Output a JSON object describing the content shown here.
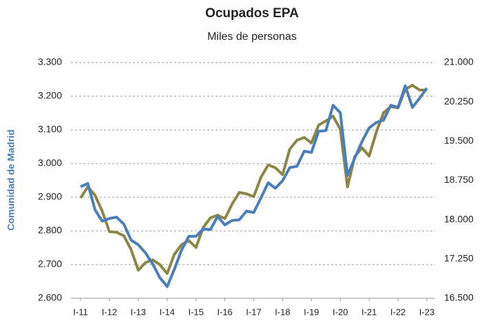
{
  "chart_data": {
    "type": "line",
    "title": "Ocupados EPA",
    "subtitle": "Miles de personas",
    "y_label": "Comunidad de Madrid",
    "categories": [
      "I-11",
      null,
      null,
      null,
      "I-12",
      null,
      null,
      null,
      "I-13",
      null,
      null,
      null,
      "I-14",
      null,
      null,
      null,
      "I-15",
      null,
      null,
      null,
      "I-16",
      null,
      null,
      null,
      "I-17",
      null,
      null,
      null,
      "I-18",
      null,
      null,
      null,
      "I-19",
      null,
      null,
      null,
      "I-20",
      null,
      null,
      null,
      "I-21",
      null,
      null,
      null,
      "I-22",
      null,
      null,
      null,
      "I-23"
    ],
    "series": [
      {
        "color": "#4a7ebb",
        "values": [
          2931,
          2941,
          2863,
          2829,
          2837,
          2841,
          2820,
          2773,
          2759,
          2735,
          2702,
          2661,
          2635,
          2686,
          2743,
          2784,
          2784,
          2806,
          2804,
          2843,
          2818,
          2831,
          2833,
          2859,
          2855,
          2898,
          2943,
          2927,
          2949,
          2988,
          2992,
          3037,
          3033,
          3096,
          3098,
          3173,
          3151,
          2965,
          3016,
          3065,
          3106,
          3122,
          3129,
          3173,
          3167,
          3231,
          3167,
          3194,
          3224
        ]
      },
      {
        "color": "#8c8646",
        "axis": "y2",
        "values": [
          18415,
          18625,
          18468,
          18166,
          17772,
          17759,
          17693,
          17431,
          17037,
          17182,
          17234,
          17142,
          16972,
          17339,
          17523,
          17602,
          17470,
          17851,
          18035,
          18087,
          18022,
          18297,
          18520,
          18494,
          18442,
          18809,
          19045,
          18993,
          18861,
          19347,
          19517,
          19570,
          19465,
          19806,
          19885,
          19977,
          19727,
          18625,
          19203,
          19373,
          19216,
          19675,
          20042,
          20160,
          20134,
          20488,
          20567,
          20475,
          20475
        ]
      }
    ],
    "ylim": [
      2600,
      3300
    ],
    "yticks": [
      {
        "value": 2600,
        "label": "2.600"
      },
      {
        "value": 2700,
        "label": "2.700"
      },
      {
        "value": 2800,
        "label": "2.800"
      },
      {
        "value": 2900,
        "label": "2.900"
      },
      {
        "value": 3000,
        "label": "3.000"
      },
      {
        "value": 3100,
        "label": "3.100"
      },
      {
        "value": 3200,
        "label": "3.200"
      },
      {
        "value": 3300,
        "label": "3.300"
      }
    ],
    "y2lim": [
      16500,
      21000
    ],
    "y2ticks": [
      {
        "value": 16500,
        "label": "16.500"
      },
      {
        "value": 17250,
        "label": "17.250"
      },
      {
        "value": 18000,
        "label": "18.000"
      },
      {
        "value": 18750,
        "label": "18.750"
      },
      {
        "value": 19500,
        "label": "19.500"
      },
      {
        "value": 20250,
        "label": "20.250"
      },
      {
        "value": 21000,
        "label": "21.000"
      }
    ],
    "grid": true
  }
}
